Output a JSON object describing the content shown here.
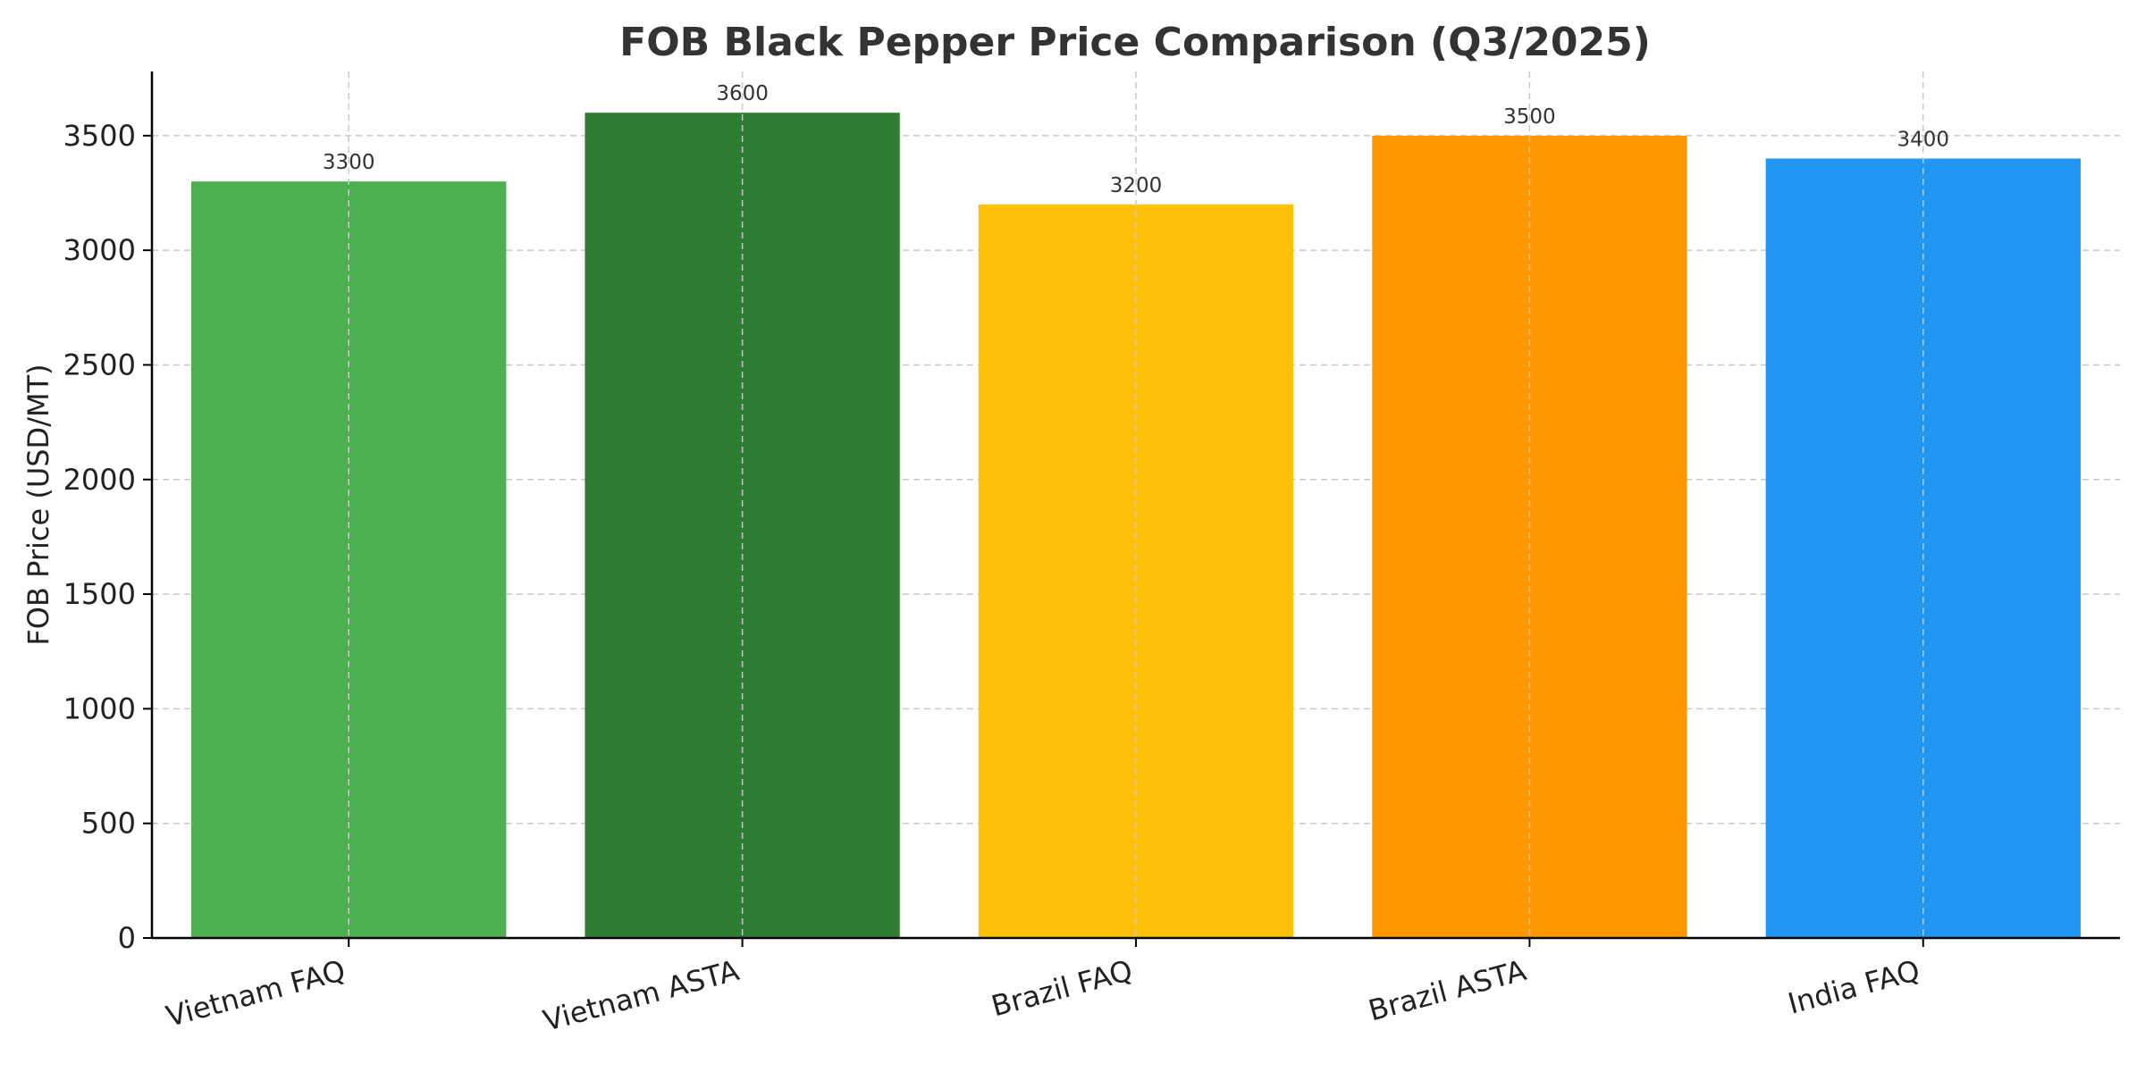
{
  "chart_data": {
    "type": "bar",
    "title": "FOB Black Pepper Price Comparison (Q3/2025)",
    "xlabel": "",
    "ylabel": "FOB Price (USD/MT)",
    "categories": [
      "Vietnam FAQ",
      "Vietnam ASTA",
      "Brazil FAQ",
      "Brazil ASTA",
      "India FAQ"
    ],
    "values": [
      3300,
      3600,
      3200,
      3500,
      3400
    ],
    "data_labels": [
      "3300",
      "3600",
      "3200",
      "3500",
      "3400"
    ],
    "colors": [
      "#4CAF50",
      "#2E7D32",
      "#FFC107",
      "#FF9800",
      "#2196F3"
    ],
    "ylim": [
      0,
      3780
    ],
    "yticks": [
      0,
      500,
      1000,
      1500,
      2000,
      2500,
      3000,
      3500
    ],
    "ytick_labels": [
      "0",
      "500",
      "1000",
      "1500",
      "2000",
      "2500",
      "3000",
      "3500"
    ],
    "grid": true,
    "legend": "none"
  }
}
